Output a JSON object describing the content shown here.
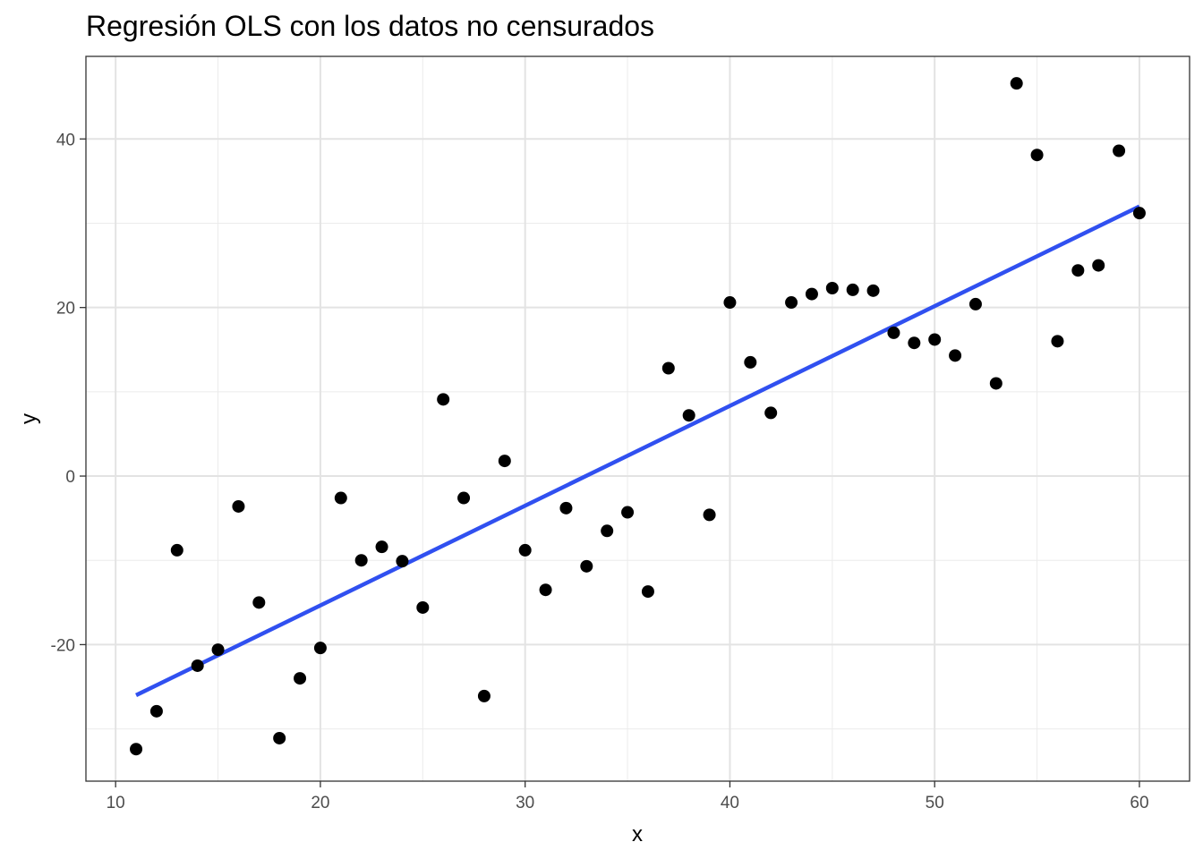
{
  "chart_data": {
    "type": "scatter",
    "title": "Regresión OLS con los datos no censurados",
    "xlabel": "x",
    "ylabel": "y",
    "xlim": [
      8.55,
      62.45
    ],
    "ylim": [
      -36.2,
      49.8
    ],
    "x_ticks": [
      10,
      20,
      30,
      40,
      50,
      60
    ],
    "x_tick_labels": [
      "10",
      "20",
      "30",
      "40",
      "50",
      "60"
    ],
    "y_ticks": [
      -20,
      0,
      20,
      40
    ],
    "y_tick_labels": [
      "-20",
      "0",
      "20",
      "40"
    ],
    "grid": true,
    "series": [
      {
        "type": "points",
        "color": "#000000",
        "points": [
          {
            "x": 11,
            "y": -32.4
          },
          {
            "x": 12,
            "y": -27.9
          },
          {
            "x": 13,
            "y": -8.8
          },
          {
            "x": 14,
            "y": -22.5
          },
          {
            "x": 15,
            "y": -20.6
          },
          {
            "x": 16,
            "y": -3.6
          },
          {
            "x": 17,
            "y": -15.0
          },
          {
            "x": 18,
            "y": -31.1
          },
          {
            "x": 19,
            "y": -24.0
          },
          {
            "x": 20,
            "y": -20.4
          },
          {
            "x": 21,
            "y": -2.6
          },
          {
            "x": 22,
            "y": -10.0
          },
          {
            "x": 23,
            "y": -8.4
          },
          {
            "x": 24,
            "y": -10.1
          },
          {
            "x": 25,
            "y": -15.6
          },
          {
            "x": 26,
            "y": 9.1
          },
          {
            "x": 27,
            "y": -2.6
          },
          {
            "x": 28,
            "y": -26.1
          },
          {
            "x": 29,
            "y": 1.8
          },
          {
            "x": 30,
            "y": -8.8
          },
          {
            "x": 31,
            "y": -13.5
          },
          {
            "x": 32,
            "y": -3.8
          },
          {
            "x": 33,
            "y": -10.7
          },
          {
            "x": 34,
            "y": -6.5
          },
          {
            "x": 35,
            "y": -4.3
          },
          {
            "x": 36,
            "y": -13.7
          },
          {
            "x": 37,
            "y": 12.8
          },
          {
            "x": 38,
            "y": 7.2
          },
          {
            "x": 39,
            "y": -4.6
          },
          {
            "x": 40,
            "y": 20.6
          },
          {
            "x": 41,
            "y": 13.5
          },
          {
            "x": 42,
            "y": 7.5
          },
          {
            "x": 43,
            "y": 20.6
          },
          {
            "x": 44,
            "y": 21.6
          },
          {
            "x": 45,
            "y": 22.3
          },
          {
            "x": 46,
            "y": 22.1
          },
          {
            "x": 47,
            "y": 22.0
          },
          {
            "x": 48,
            "y": 17.0
          },
          {
            "x": 49,
            "y": 15.8
          },
          {
            "x": 50,
            "y": 16.2
          },
          {
            "x": 51,
            "y": 14.3
          },
          {
            "x": 52,
            "y": 20.4
          },
          {
            "x": 53,
            "y": 11.0
          },
          {
            "x": 54,
            "y": 46.6
          },
          {
            "x": 55,
            "y": 38.1
          },
          {
            "x": 56,
            "y": 16.0
          },
          {
            "x": 57,
            "y": 24.4
          },
          {
            "x": 58,
            "y": 25.0
          },
          {
            "x": 59,
            "y": 38.6
          },
          {
            "x": 60,
            "y": 31.2
          }
        ]
      },
      {
        "type": "line",
        "color": "#3050f0",
        "x": [
          11,
          60
        ],
        "y": [
          -26.0,
          32.0
        ]
      }
    ]
  }
}
